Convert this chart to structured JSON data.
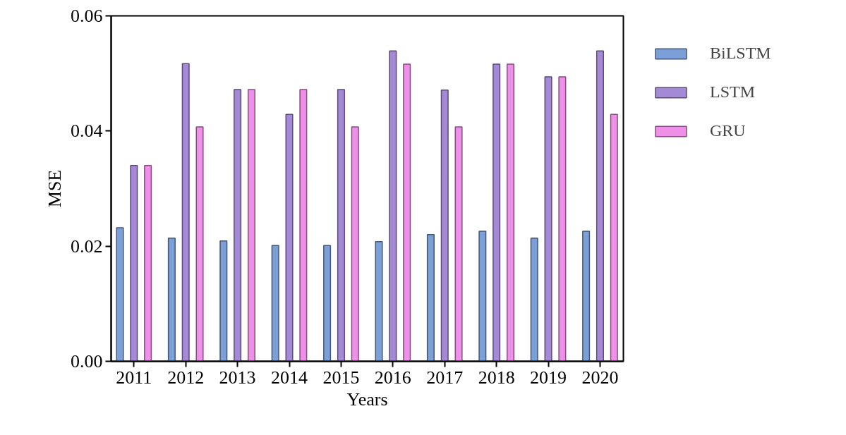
{
  "chart_data": {
    "type": "bar",
    "xlabel": "Years",
    "ylabel": "MSE",
    "categories": [
      "2011",
      "2012",
      "2013",
      "2014",
      "2015",
      "2016",
      "2017",
      "2018",
      "2019",
      "2020"
    ],
    "series": [
      {
        "name": "BiLSTM",
        "color": "#7b9fd6",
        "values": [
          0.0232,
          0.0214,
          0.0209,
          0.0201,
          0.0201,
          0.0208,
          0.022,
          0.0226,
          0.0214,
          0.0226
        ]
      },
      {
        "name": "LSTM",
        "color": "#a48ad6",
        "values": [
          0.034,
          0.0517,
          0.0472,
          0.0429,
          0.0472,
          0.0539,
          0.0471,
          0.0516,
          0.0494,
          0.0539
        ]
      },
      {
        "name": "GRU",
        "color": "#ee90e8",
        "values": [
          0.034,
          0.0407,
          0.0472,
          0.0472,
          0.0407,
          0.0516,
          0.0407,
          0.0516,
          0.0494,
          0.0429
        ]
      }
    ],
    "ylim": [
      0,
      0.06
    ],
    "yticks": [
      {
        "value": 0,
        "label": "0.00"
      },
      0.02,
      0.04,
      0.06
    ],
    "grid": false,
    "legend": "right"
  }
}
